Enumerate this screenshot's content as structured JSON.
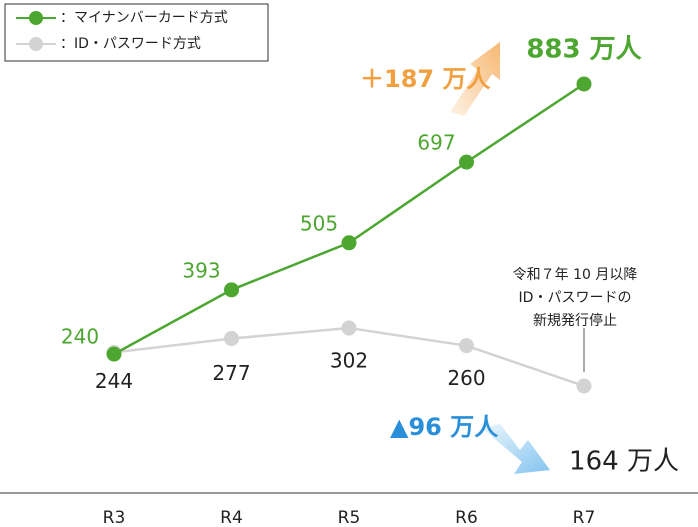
{
  "chart_data": {
    "type": "line",
    "categories": [
      "R3",
      "R4",
      "R5",
      "R6",
      "R7"
    ],
    "series": [
      {
        "name": "：マイナンバーカード方式",
        "color": "#4ca630",
        "values": [
          240,
          393,
          505,
          697,
          883
        ],
        "value_labels": [
          "240",
          "393",
          "505",
          "697",
          "883 万人"
        ]
      },
      {
        "name": "：ID・パスワード方式",
        "color": "#d3d3d3",
        "values": [
          244,
          277,
          302,
          260,
          164
        ],
        "value_labels": [
          "244",
          "277",
          "302",
          "260",
          "164 万人"
        ]
      }
    ],
    "annotations": [
      "＋187 万人",
      "▲96 万人"
    ],
    "note": [
      "令和７年 10 月以降",
      "ID・パスワードの",
      "新規発行停止"
    ]
  }
}
